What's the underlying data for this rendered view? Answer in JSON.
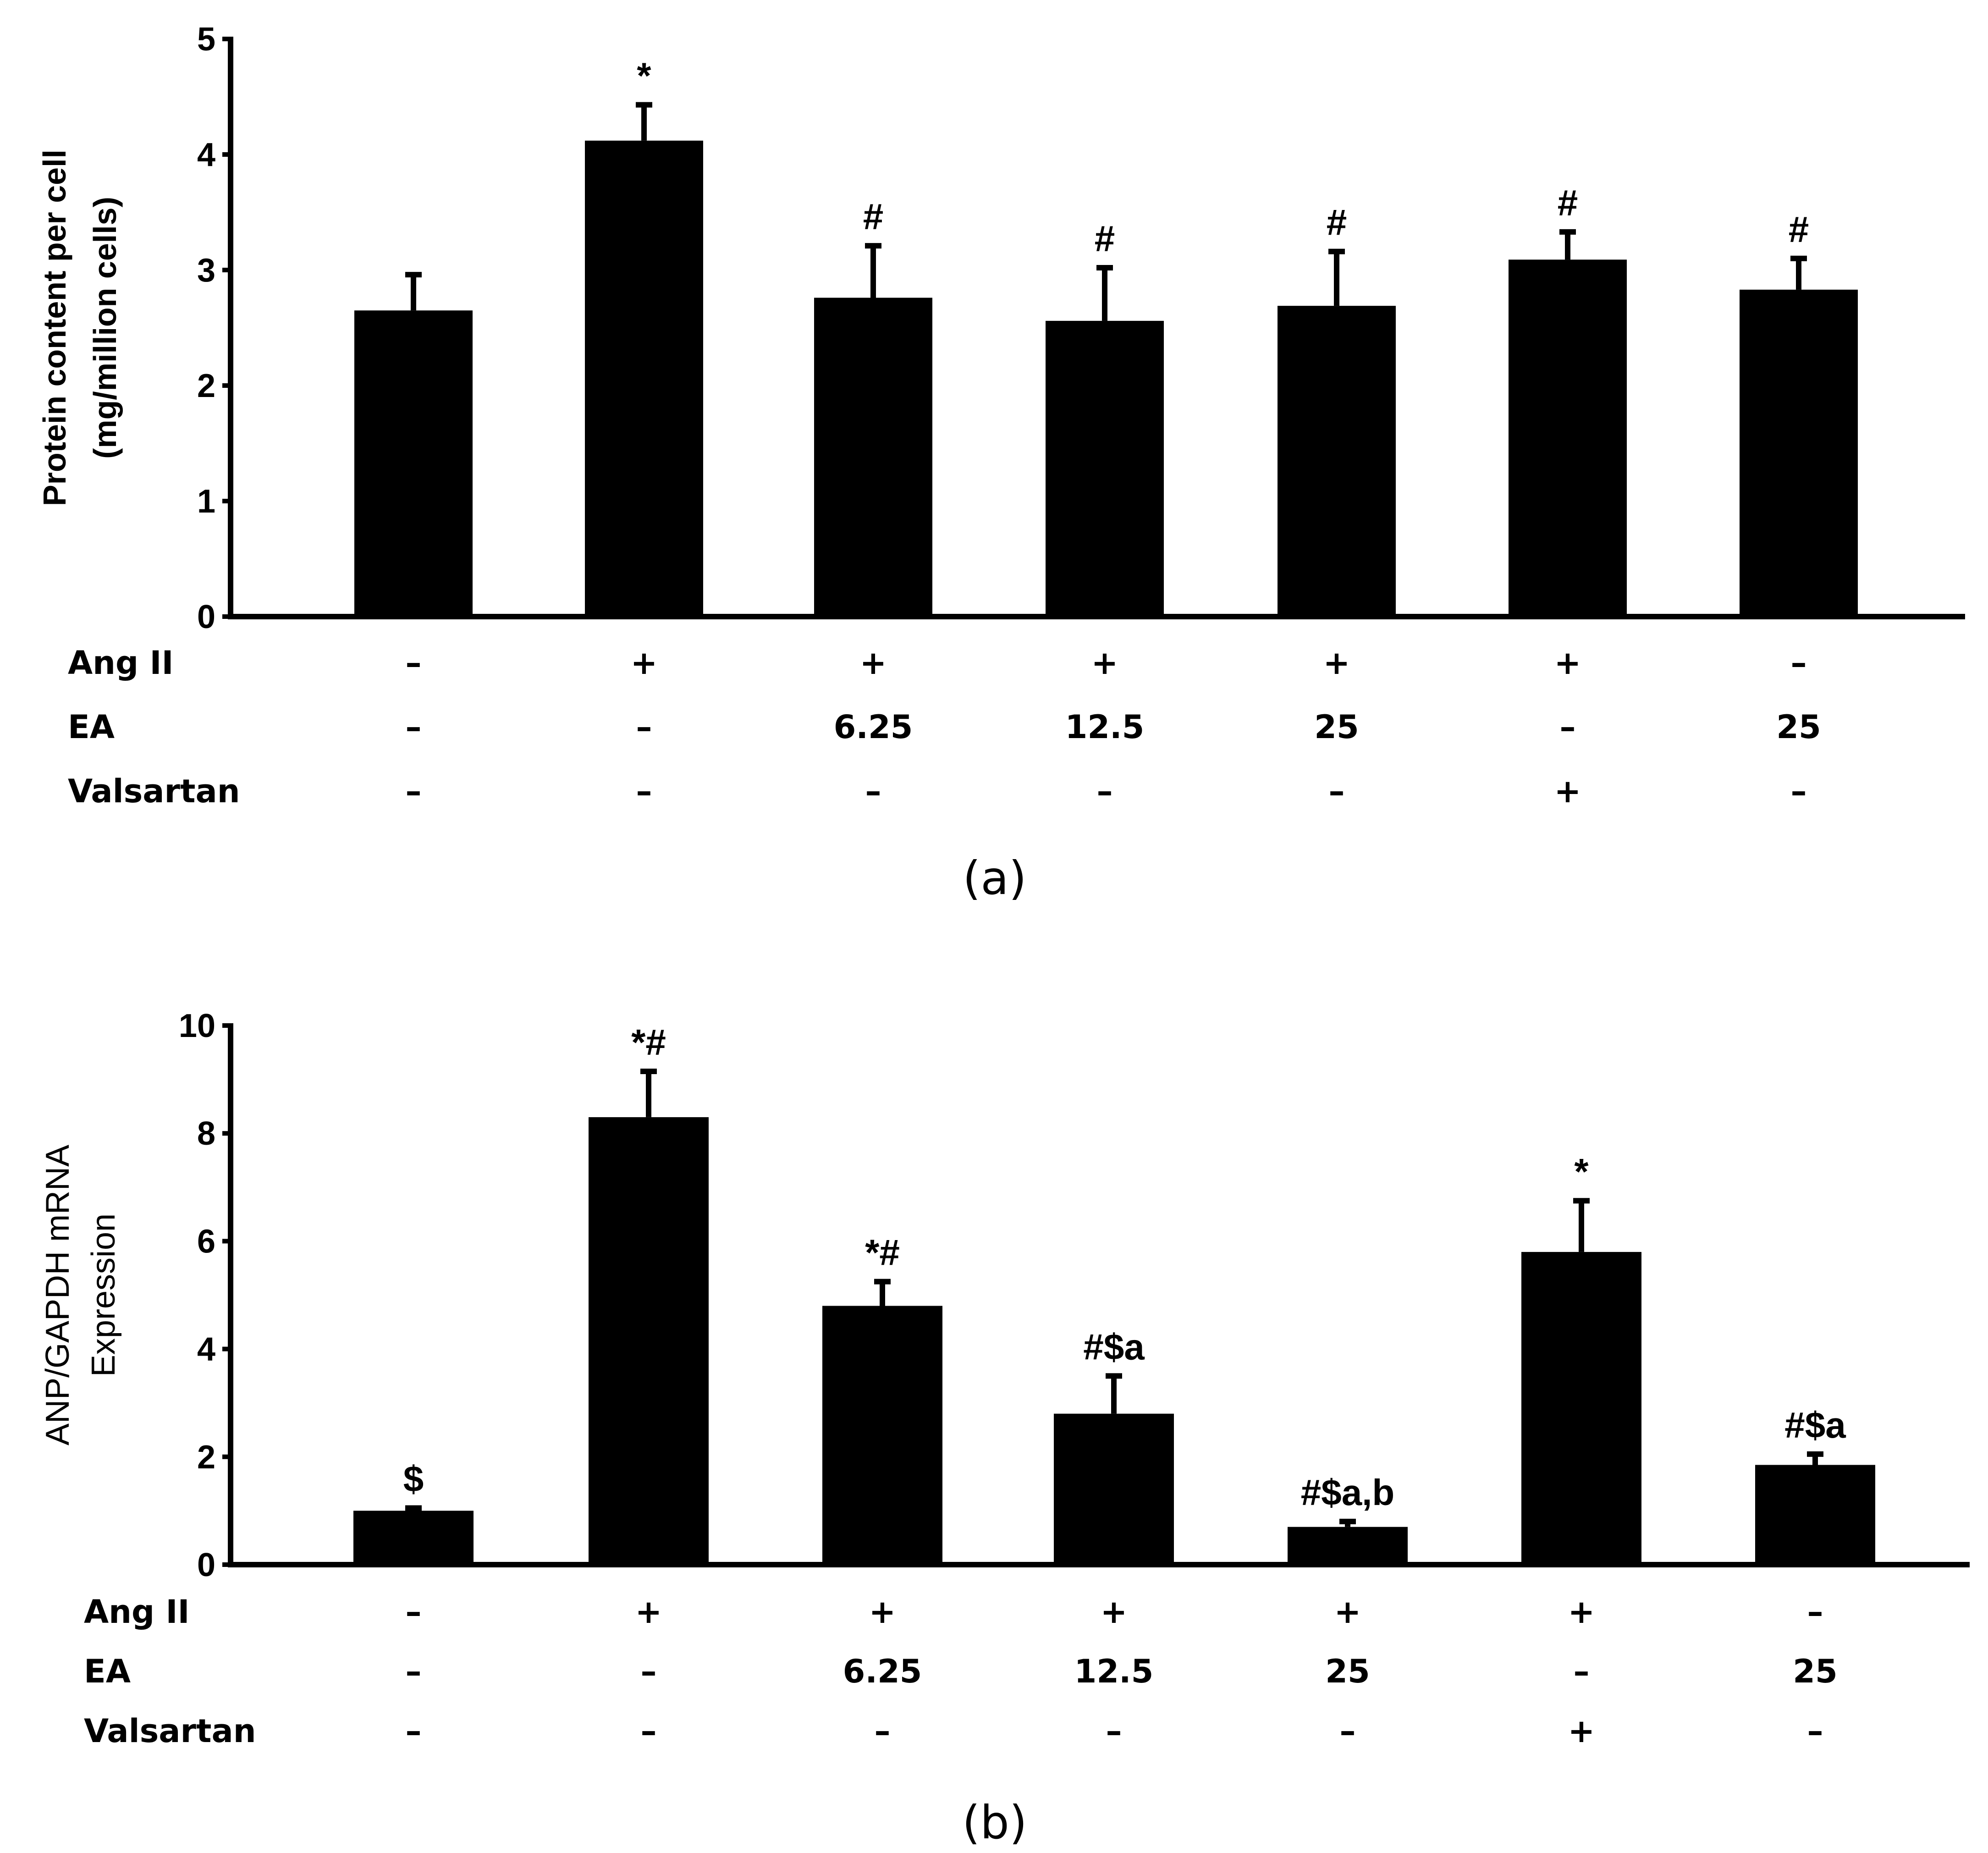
{
  "chart_data": [
    {
      "type": "bar",
      "panel_label": "(a)",
      "ylabel": [
        "Protein content per cell",
        "(mg/million cells)"
      ],
      "ylim": [
        0,
        5
      ],
      "yticks": [
        0,
        1,
        2,
        3,
        4,
        5
      ],
      "values": [
        2.65,
        4.12,
        2.76,
        2.56,
        2.69,
        3.09,
        2.83
      ],
      "errors": [
        0.31,
        0.31,
        0.45,
        0.46,
        0.47,
        0.24,
        0.27
      ],
      "annotations": [
        "",
        "*",
        "#",
        "#",
        "#",
        "#",
        "#"
      ],
      "conditions": [
        {
          "label": "Ang II",
          "values": [
            "–",
            "+",
            "+",
            "+",
            "+",
            "+",
            "–"
          ]
        },
        {
          "label": "EA",
          "values": [
            "–",
            "–",
            "6.25",
            "12.5",
            "25",
            "–",
            "25"
          ]
        },
        {
          "label": "Valsartan",
          "values": [
            "–",
            "–",
            "–",
            "–",
            "–",
            "+",
            "–"
          ]
        }
      ]
    },
    {
      "type": "bar",
      "panel_label": "(b)",
      "ylabel": [
        "ANP/GAPDH mRNA",
        "Expression"
      ],
      "ylim": [
        0,
        10
      ],
      "yticks": [
        0,
        2,
        4,
        6,
        8,
        10
      ],
      "values": [
        1.0,
        8.3,
        4.8,
        2.8,
        0.7,
        5.8,
        1.85
      ],
      "errors": [
        0.05,
        0.85,
        0.45,
        0.7,
        0.1,
        0.95,
        0.2
      ],
      "annotations": [
        "$",
        "*#",
        "*#",
        "#$a",
        "#$a,b",
        "*",
        "#$a"
      ],
      "conditions": [
        {
          "label": "Ang II",
          "values": [
            "–",
            "+",
            "+",
            "+",
            "+",
            "+",
            "–"
          ]
        },
        {
          "label": "EA",
          "values": [
            "–",
            "–",
            "6.25",
            "12.5",
            "25",
            "–",
            "25"
          ]
        },
        {
          "label": "Valsartan",
          "values": [
            "–",
            "–",
            "–",
            "–",
            "–",
            "+",
            "–"
          ]
        }
      ]
    }
  ]
}
